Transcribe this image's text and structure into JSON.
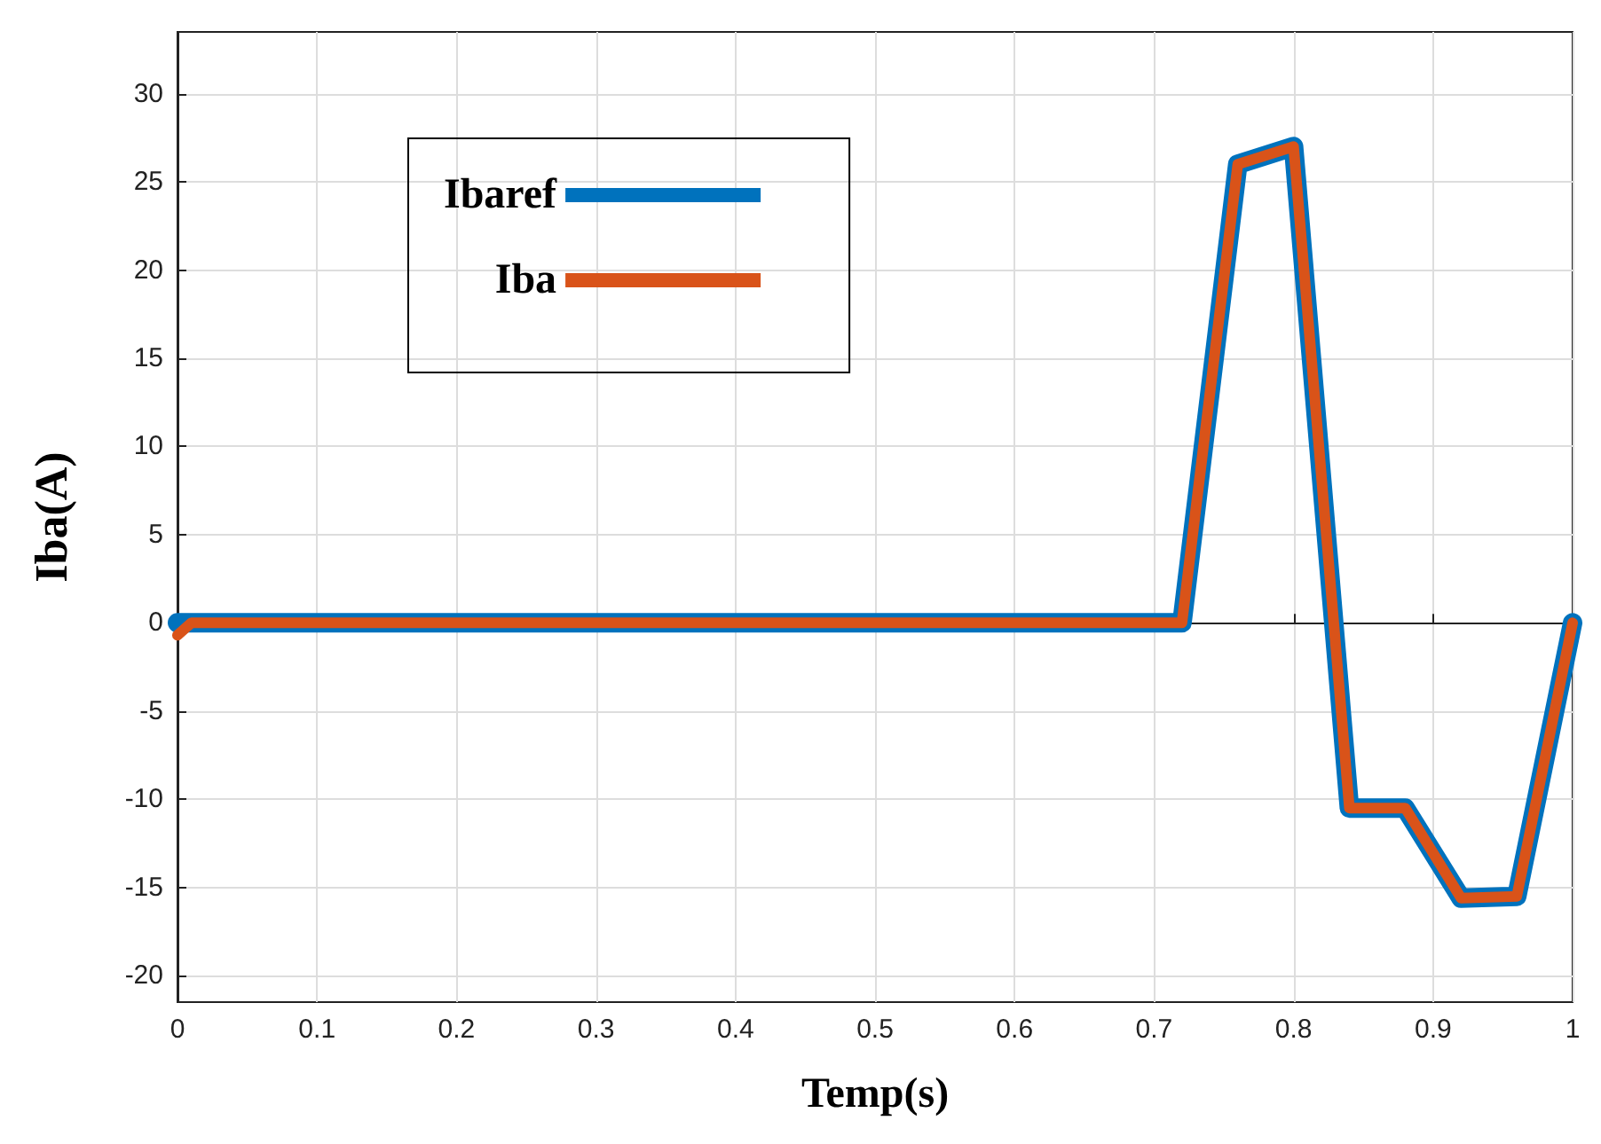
{
  "chart_data": {
    "type": "line",
    "xlabel": "Temp(s)",
    "ylabel": "Iba(A)",
    "xlim": [
      0,
      1
    ],
    "xticks": [
      0,
      0.1,
      0.2,
      0.3,
      0.4,
      0.5,
      0.6,
      0.7,
      0.8,
      0.9,
      1
    ],
    "ylim": [
      -21.5,
      33.5
    ],
    "yticks": [
      -20,
      -15,
      -10,
      -5,
      0,
      5,
      10,
      15,
      20,
      25,
      30
    ],
    "grid": true,
    "legend": "top left",
    "marker": "none",
    "line_style": "solid",
    "series": [
      {
        "name": "Ibaref",
        "color": "#0072bd",
        "x": [
          0,
          0.72,
          0.76,
          0.8,
          0.84,
          0.88,
          0.92,
          0.96,
          1
        ],
        "values": [
          0,
          0,
          26,
          27,
          -10.5,
          -10.5,
          -15.6,
          -15.5,
          0
        ]
      },
      {
        "name": "Iba",
        "color": "#d95319",
        "x": [
          0,
          0.01,
          0.72,
          0.76,
          0.8,
          0.84,
          0.88,
          0.92,
          0.96,
          1
        ],
        "values": [
          -0.7,
          0,
          0,
          26,
          27,
          -10.5,
          -10.5,
          -15.6,
          -15.5,
          0
        ]
      }
    ]
  }
}
